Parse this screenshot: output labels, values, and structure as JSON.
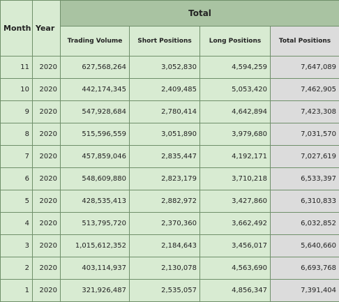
{
  "header": {
    "month": "Month",
    "year": "Year",
    "group": "Total",
    "columns": [
      "Trading Volume",
      "Short Positions",
      "Long Positions",
      "Total Positions"
    ]
  },
  "table": {
    "rows": [
      [
        "11",
        "2020",
        "627,568,264",
        "3,052,830",
        "4,594,259",
        "7,647,089"
      ],
      [
        "10",
        "2020",
        "442,174,345",
        "2,409,485",
        "5,053,420",
        "7,462,905"
      ],
      [
        "9",
        "2020",
        "547,928,684",
        "2,780,414",
        "4,642,894",
        "7,423,308"
      ],
      [
        "8",
        "2020",
        "515,596,559",
        "3,051,890",
        "3,979,680",
        "7,031,570"
      ],
      [
        "7",
        "2020",
        "457,859,046",
        "2,835,447",
        "4,192,171",
        "7,027,619"
      ],
      [
        "6",
        "2020",
        "548,609,880",
        "2,823,179",
        "3,710,218",
        "6,533,397"
      ],
      [
        "5",
        "2020",
        "428,535,413",
        "2,882,972",
        "3,427,860",
        "6,310,833"
      ],
      [
        "4",
        "2020",
        "513,795,720",
        "2,370,360",
        "3,662,492",
        "6,032,852"
      ],
      [
        "3",
        "2020",
        "1,015,612,352",
        "2,184,643",
        "3,456,017",
        "5,640,660"
      ],
      [
        "2",
        "2020",
        "403,114,937",
        "2,130,078",
        "4,563,690",
        "6,693,768"
      ],
      [
        "1",
        "2020",
        "321,926,487",
        "2,535,057",
        "4,856,347",
        "7,391,404"
      ]
    ]
  }
}
